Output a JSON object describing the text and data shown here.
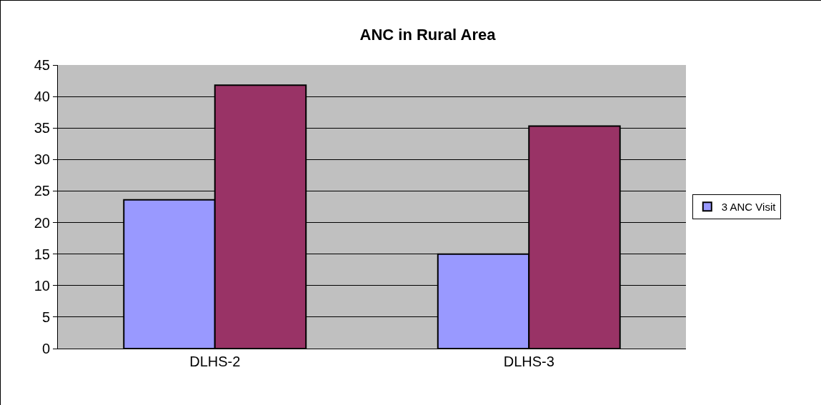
{
  "chart_data": {
    "type": "bar",
    "title": "ANC in Rural Area",
    "categories": [
      "DLHS-2",
      "DLHS-3"
    ],
    "series": [
      {
        "name": "3 ANC Visit",
        "color": "#9999ff",
        "values": [
          23.6,
          15.0
        ]
      },
      {
        "color": "#993366",
        "values": [
          41.8,
          35.3
        ]
      }
    ],
    "ylim": [
      0,
      45
    ],
    "yticks": [
      0,
      5,
      10,
      15,
      20,
      25,
      30,
      35,
      40,
      45
    ],
    "grid": "y",
    "legend": "right"
  }
}
